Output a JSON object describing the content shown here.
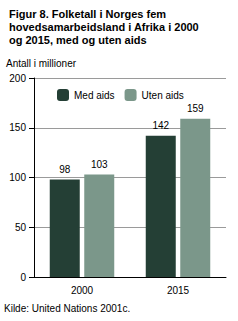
{
  "chart_data": {
    "type": "bar",
    "title": "Figur 8. Folketall i Norges fem hovedsamarbeidsland i Afrika i 2000 og 2015, med og uten aids",
    "ylabel": "Antall i millioner",
    "source": "Kilde: United Nations 2001c.",
    "categories": [
      "2000",
      "2015"
    ],
    "series": [
      {
        "name": "Med aids",
        "color": "#243f35",
        "values": [
          98,
          142
        ]
      },
      {
        "name": "Uten aids",
        "color": "#7b978a",
        "values": [
          103,
          159
        ]
      }
    ],
    "ylim": [
      0,
      200
    ],
    "yticks": [
      0,
      50,
      100,
      150,
      200
    ],
    "grid": true,
    "legend": "top",
    "data_labels": true
  }
}
